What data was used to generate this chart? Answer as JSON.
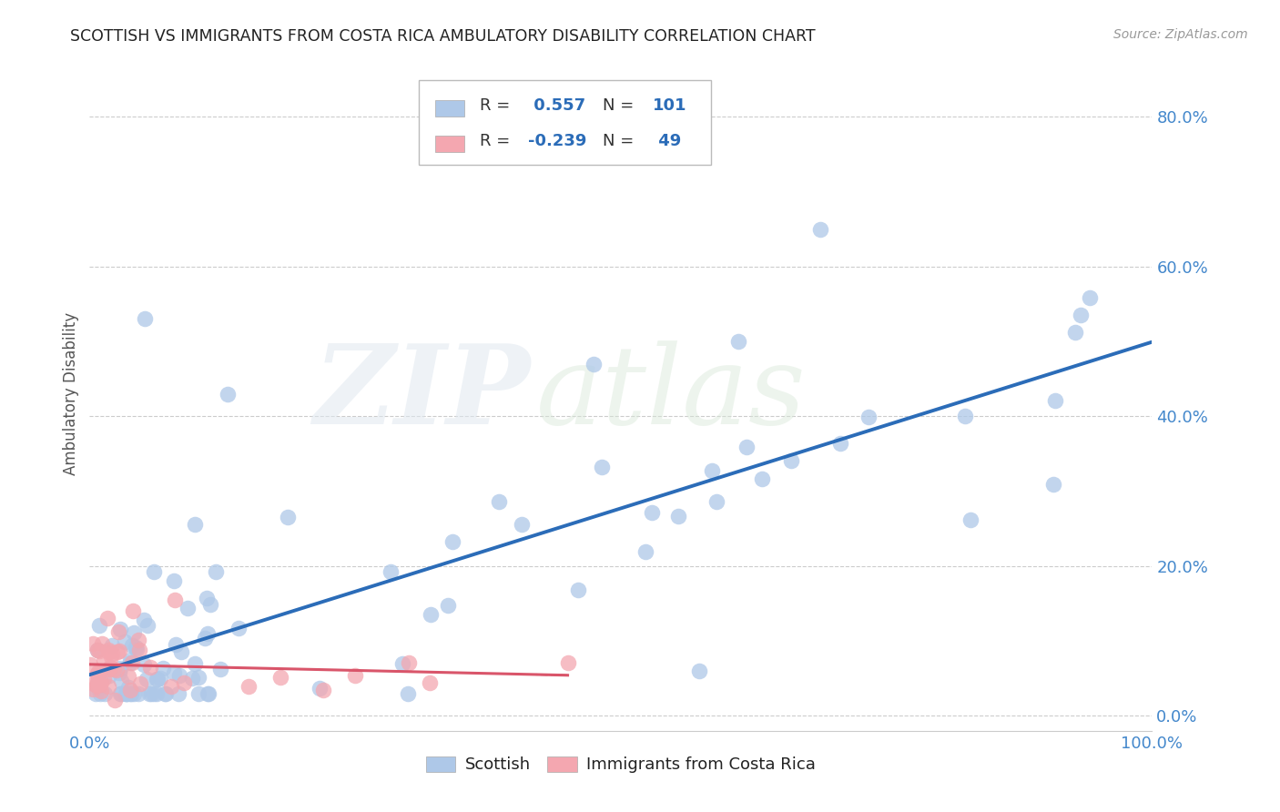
{
  "title": "SCOTTISH VS IMMIGRANTS FROM COSTA RICA AMBULATORY DISABILITY CORRELATION CHART",
  "source": "Source: ZipAtlas.com",
  "ylabel": "Ambulatory Disability",
  "xlim": [
    0.0,
    1.0
  ],
  "ylim": [
    -0.02,
    0.88
  ],
  "ytick_labels": [
    "0.0%",
    "20.0%",
    "40.0%",
    "60.0%",
    "80.0%"
  ],
  "ytick_vals": [
    0.0,
    0.2,
    0.4,
    0.6,
    0.8
  ],
  "xtick_labels": [
    "0.0%",
    "100.0%"
  ],
  "xtick_vals": [
    0.0,
    1.0
  ],
  "blue_R": 0.557,
  "blue_N": 101,
  "pink_R": -0.239,
  "pink_N": 49,
  "blue_color": "#aec8e8",
  "pink_color": "#f4a7b0",
  "blue_line_color": "#2b6cb8",
  "pink_line_color": "#d9556a",
  "background_color": "#ffffff",
  "grid_color": "#cccccc",
  "watermark_zip": "ZIP",
  "watermark_atlas": "atlas",
  "legend_blue_label": "Scottish",
  "legend_pink_label": "Immigrants from Costa Rica"
}
